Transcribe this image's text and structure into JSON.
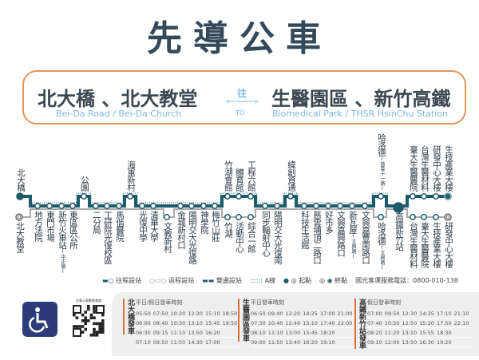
{
  "title": "先導公車",
  "banner": {
    "origin_zh": "北大橋 、北大教堂",
    "origin_en": "Bei-Da Road  / Bei-Da Church",
    "to_zh": "往",
    "to_en": "TO",
    "dest_zh": "生醫園區 、新竹高鐵",
    "dest_en": "Biomedical Park / THSR HsinChu Station"
  },
  "colors": {
    "route": "#1d5a6a",
    "return": "#aaaaaa",
    "accent": "#d9703a",
    "text_en": "#7db9e2"
  },
  "route": {
    "upper_stations": [
      {
        "name": "北大橋"
      },
      {
        "name": "公園"
      },
      {
        "name": "海軍新村"
      },
      {
        "name": "竹湖會館"
      },
      {
        "name": "體育館"
      },
      {
        "name": "工程六館"
      },
      {
        "name": "緯創資通"
      },
      {
        "name": "哈洛德",
        "note": "(慈雲十一路)"
      },
      {
        "name": "臺大生醫醫院"
      },
      {
        "name": "台灣生醫材料"
      },
      {
        "name": "研發中心大樓"
      },
      {
        "name": "生技產業大樓"
      }
    ],
    "lower_stations": [
      {
        "name": "北大教堂"
      },
      {
        "name": "地方法院"
      },
      {
        "name": "東門市場"
      },
      {
        "name": "新竹火車站",
        "note": "(中正路)"
      },
      {
        "name": "東區區公所"
      },
      {
        "name": "二分局"
      },
      {
        "name": "工研院光復校區"
      },
      {
        "name": "馬偕醫院"
      },
      {
        "name": "光復中學"
      },
      {
        "name": "清華大學"
      },
      {
        "name": "文教新村"
      },
      {
        "name": "金城新村口"
      },
      {
        "name": "陽明交大光復路"
      },
      {
        "name": "神學院"
      },
      {
        "name": "梅竹山莊"
      },
      {
        "name": "竹湖"
      },
      {
        "name": "活動中心"
      },
      {
        "name": "綜合一館"
      },
      {
        "name": "同步輻射中心"
      },
      {
        "name": "陽明交大光復南"
      },
      {
        "name": "科技生活館"
      },
      {
        "name": "慈雲埔頂二路口"
      },
      {
        "name": "好市多"
      },
      {
        "name": "文興嘉興路口"
      },
      {
        "name": "新瓦屋",
        "note": "(文興路)"
      },
      {
        "name": "文興嘉豐南路口"
      },
      {
        "name": "哈洛德",
        "note": "(文興路)"
      },
      {
        "name": "高鐵新竹站"
      },
      {
        "name": "台灣生醫材料"
      },
      {
        "name": "臺大生醫醫院"
      },
      {
        "name": "生技產業大樓"
      },
      {
        "name": "研發中心大樓"
      }
    ]
  },
  "legend": {
    "outbound": "往程設站",
    "return": "返程設站",
    "both": "雙邊設站",
    "line_a": "A線",
    "start": "起點",
    "end": "終點",
    "hotline": "國光客運服務電話：0800-010-138"
  },
  "qr_caption": "注意公車動態查詢",
  "schedules": [
    {
      "label": "北大橋發車",
      "heading": "平日/假日發車時刻",
      "rows": [
        [
          "05:50",
          "07:50",
          "10:20",
          "12:30",
          "15:10",
          "18:50"
        ],
        [
          "06:00",
          "08:40",
          "10:30",
          "13:10",
          "15:45",
          "19:50"
        ],
        [
          "06:30",
          "09:15",
          "11:10",
          "13:50",
          "16:20",
          ""
        ],
        [
          "07:10",
          "09:50",
          "11:50",
          "14:30",
          "17:00",
          ""
        ]
      ]
    },
    {
      "label": "生醫園區發車",
      "heading": "平日發車時刻",
      "rows": [
        [
          "06:50",
          "09:40",
          "12:20",
          "14:25",
          "17:00",
          "21:00"
        ],
        [
          "07:30",
          "10:40",
          "12:40",
          "15:10",
          "17:40",
          "22:00"
        ],
        [
          "08:10",
          "11:10",
          "13:00",
          "15:45",
          "18:20",
          ""
        ],
        [
          "09:00",
          "11:50",
          "13:40",
          "16:20",
          "19:10",
          ""
        ]
      ]
    },
    {
      "label": "高鐵新竹站發車",
      "heading": "假日發車時刻",
      "rows": [
        [
          "07:00",
          "09:50",
          "12:30",
          "14:35",
          "17:10",
          "21:10"
        ],
        [
          "07:40",
          "10:50",
          "12:50",
          "15:20",
          "17:50",
          "22:10"
        ],
        [
          "08:20",
          "11:20",
          "13:10",
          "15:55",
          "18:30",
          ""
        ],
        [
          "09:10",
          "12:00",
          "13:50",
          "16:30",
          "19:20",
          ""
        ]
      ]
    }
  ]
}
